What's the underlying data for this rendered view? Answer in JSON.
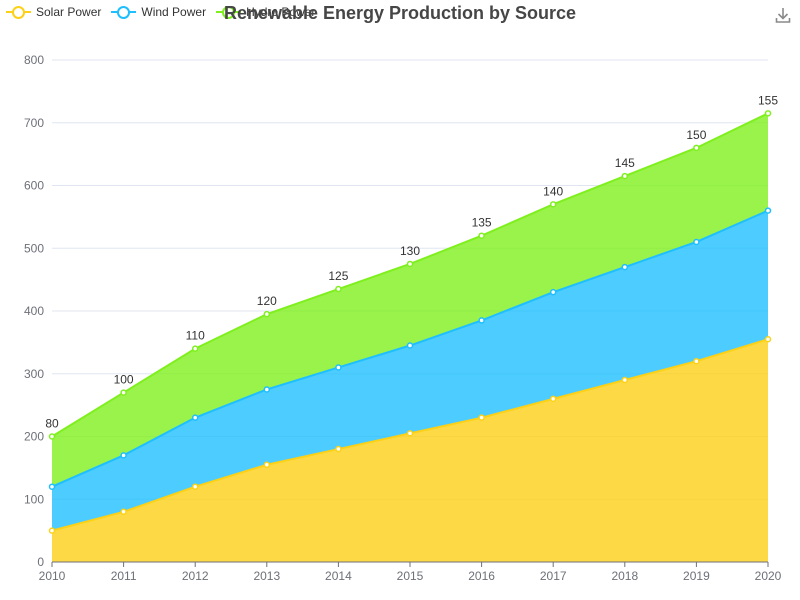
{
  "chart_data": {
    "type": "area",
    "stacked": true,
    "title": "Renewable Energy Production by Source",
    "categories": [
      "2010",
      "2011",
      "2012",
      "2013",
      "2014",
      "2015",
      "2016",
      "2017",
      "2018",
      "2019",
      "2020"
    ],
    "ylim": [
      0,
      800
    ],
    "yticks": [
      0,
      100,
      200,
      300,
      400,
      500,
      600,
      700,
      800
    ],
    "grid": true,
    "legend_position": "top-left",
    "series": [
      {
        "name": "Solar Power",
        "color": "#fcd116",
        "values": [
          50,
          80,
          120,
          155,
          180,
          205,
          230,
          260,
          290,
          320,
          355
        ]
      },
      {
        "name": "Wind Power",
        "color": "#1fbfff",
        "values": [
          70,
          90,
          110,
          120,
          130,
          140,
          155,
          170,
          180,
          190,
          205
        ]
      },
      {
        "name": "Hydro Power",
        "color": "#7ff01e",
        "values": [
          80,
          100,
          110,
          120,
          125,
          130,
          135,
          140,
          145,
          150,
          155
        ]
      }
    ],
    "data_labels_series": "Hydro Power"
  },
  "toolbar": {
    "download_icon": "download-icon"
  }
}
